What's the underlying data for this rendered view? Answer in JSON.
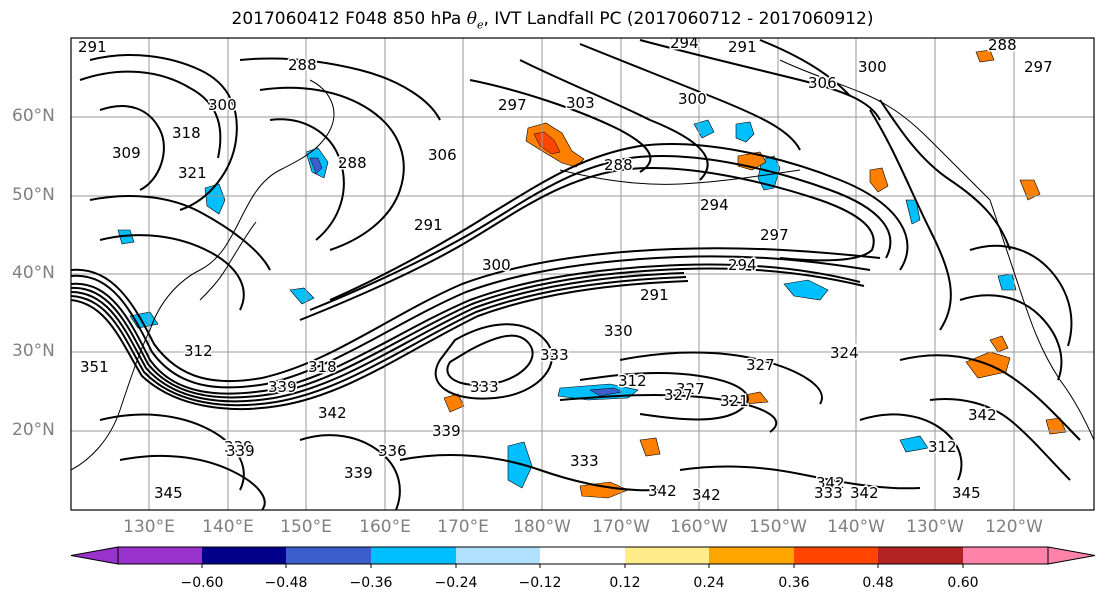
{
  "title": {
    "prefix": "2017060412 F048 850 hPa ",
    "theta_symbol": "θ",
    "theta_sub": "e",
    "suffix": ", IVT Landfall PC (2017060712 - 2017060912)"
  },
  "lat_labels": [
    "60°N",
    "50°N",
    "40°N",
    "30°N",
    "20°N"
  ],
  "lon_labels": [
    "130°E",
    "140°E",
    "150°E",
    "160°E",
    "170°E",
    "180°W",
    "170°W",
    "160°W",
    "150°W",
    "140°W",
    "130°W",
    "120°W"
  ],
  "contour_labels": [
    "291",
    "288",
    "294",
    "291",
    "288",
    "300",
    "306",
    "300",
    "288",
    "297",
    "309",
    "318",
    "321",
    "300",
    "297",
    "303",
    "306",
    "288",
    "291",
    "294",
    "297",
    "294",
    "291",
    "300",
    "330",
    "327",
    "324",
    "351",
    "312",
    "339",
    "318",
    "342",
    "339",
    "333",
    "339",
    "333",
    "312",
    "327",
    "321",
    "339",
    "336",
    "339",
    "345",
    "333",
    "342",
    "342",
    "342",
    "333",
    "342",
    "345",
    "342",
    "312",
    "327"
  ],
  "colorbar": {
    "tick_labels": [
      "−0.60",
      "−0.48",
      "−0.36",
      "−0.24",
      "−0.12",
      "0.12",
      "0.24",
      "0.36",
      "0.48",
      "0.60"
    ],
    "colors": [
      "#9932cc",
      "#00008b",
      "#3a5fcd",
      "#00bfff",
      "#b0e2ff",
      "#ffffff",
      "#ffec8b",
      "#ffa500",
      "#ff4500",
      "#b22222",
      "#ff82ab"
    ]
  }
}
